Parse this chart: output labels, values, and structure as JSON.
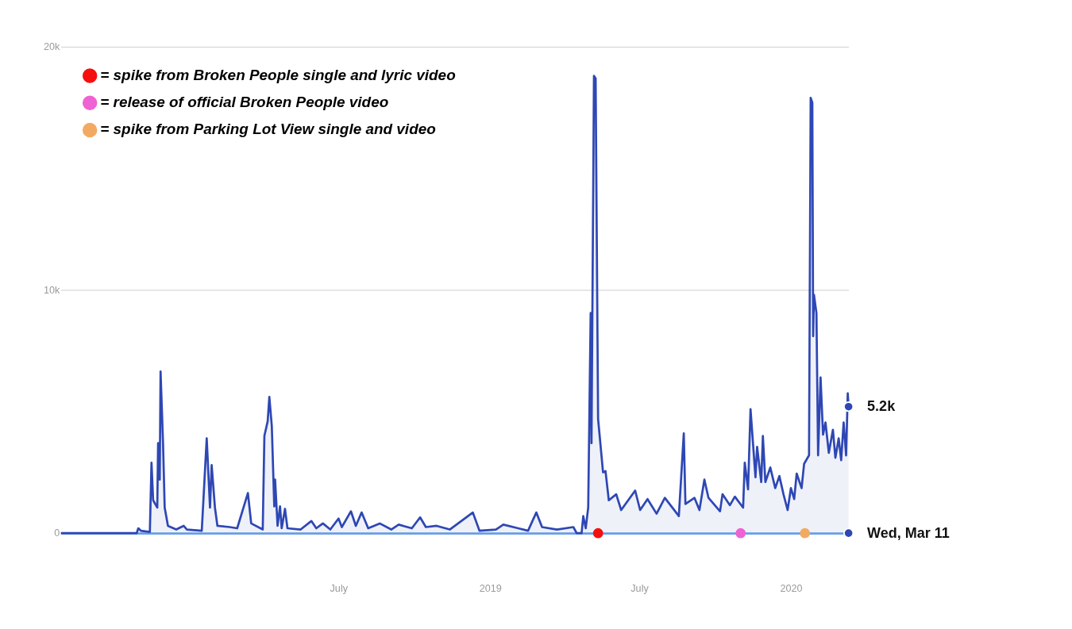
{
  "chart_data": {
    "type": "area",
    "x": [
      "2017-07-29",
      "2017-10-29",
      "2017-10-31",
      "2017-11-03",
      "2017-11-14",
      "2017-11-16",
      "2017-11-18",
      "2017-11-23",
      "2017-11-24",
      "2017-11-26",
      "2017-11-27",
      "2017-11-30",
      "2017-12-02",
      "2017-12-06",
      "2017-12-16",
      "2017-12-25",
      "2017-12-29",
      "2018-01-16",
      "2018-01-22",
      "2018-01-26",
      "2018-01-28",
      "2018-02-01",
      "2018-02-04",
      "2018-02-19",
      "2018-02-28",
      "2018-03-13",
      "2018-03-17",
      "2018-03-31",
      "2018-04-02",
      "2018-04-06",
      "2018-04-08",
      "2018-04-11",
      "2018-04-14",
      "2018-04-15",
      "2018-04-18",
      "2018-04-21",
      "2018-04-23",
      "2018-04-27",
      "2018-04-30",
      "2018-05-16",
      "2018-05-29",
      "2018-06-04",
      "2018-06-12",
      "2018-06-21",
      "2018-07-01",
      "2018-07-05",
      "2018-07-16",
      "2018-07-22",
      "2018-07-29",
      "2018-08-06",
      "2018-08-20",
      "2018-09-03",
      "2018-09-12",
      "2018-09-28",
      "2018-10-08",
      "2018-10-15",
      "2018-10-28",
      "2018-11-13",
      "2018-12-11",
      "2018-12-19",
      "2019-01-08",
      "2019-01-17",
      "2019-02-04",
      "2019-02-16",
      "2019-02-26",
      "2019-03-05",
      "2019-03-23",
      "2019-04-12",
      "2019-04-16",
      "2019-04-22",
      "2019-04-24",
      "2019-04-27",
      "2019-04-30",
      "2019-05-03",
      "2019-05-04",
      "2019-05-07",
      "2019-05-09",
      "2019-05-12",
      "2019-05-18",
      "2019-05-21",
      "2019-05-25",
      "2019-06-03",
      "2019-06-09",
      "2019-06-26",
      "2019-07-02",
      "2019-07-11",
      "2019-07-22",
      "2019-08-01",
      "2019-08-18",
      "2019-08-24",
      "2019-08-26",
      "2019-09-06",
      "2019-09-12",
      "2019-09-18",
      "2019-09-23",
      "2019-10-07",
      "2019-10-10",
      "2019-10-19",
      "2019-10-25",
      "2019-11-04",
      "2019-11-06",
      "2019-11-10",
      "2019-11-13",
      "2019-11-19",
      "2019-11-21",
      "2019-11-26",
      "2019-11-28",
      "2019-12-01",
      "2019-12-07",
      "2019-12-13",
      "2019-12-18",
      "2019-12-23",
      "2019-12-28",
      "2020-01-01",
      "2020-01-05",
      "2020-01-08",
      "2020-01-14",
      "2020-01-17",
      "2020-01-23",
      "2020-01-25",
      "2020-01-27",
      "2020-01-28",
      "2020-01-29",
      "2020-02-01",
      "2020-02-03",
      "2020-02-06",
      "2020-02-09",
      "2020-02-12",
      "2020-02-16",
      "2020-02-21",
      "2020-02-24",
      "2020-02-28",
      "2020-03-02",
      "2020-03-05",
      "2020-03-08",
      "2020-03-10",
      "2020-03-11"
    ],
    "series": [
      {
        "color": "#2e47b4",
        "marker": "none",
        "values": [
          0,
          0,
          200,
          100,
          50,
          2900,
          1350,
          1050,
          3700,
          2200,
          6650,
          3700,
          1050,
          300,
          150,
          300,
          150,
          100,
          3900,
          1050,
          2800,
          1050,
          300,
          250,
          200,
          1650,
          400,
          150,
          4000,
          4600,
          5600,
          4400,
          1100,
          2200,
          300,
          1100,
          200,
          1000,
          200,
          150,
          500,
          200,
          400,
          150,
          600,
          250,
          900,
          300,
          850,
          200,
          400,
          150,
          350,
          200,
          650,
          250,
          300,
          150,
          850,
          100,
          150,
          350,
          200,
          100,
          850,
          250,
          150,
          250,
          0,
          0,
          700,
          200,
          1050,
          9050,
          3700,
          18800,
          18700,
          4700,
          2500,
          2550,
          1350,
          1600,
          950,
          1750,
          950,
          1400,
          800,
          1450,
          700,
          4100,
          1200,
          1450,
          950,
          2200,
          1450,
          900,
          1600,
          1150,
          1500,
          1050,
          2900,
          1800,
          5100,
          2300,
          3550,
          2100,
          4000,
          2100,
          2700,
          1850,
          2350,
          1600,
          950,
          1850,
          1400,
          2450,
          1850,
          2850,
          3200,
          17900,
          17700,
          8100,
          9800,
          9050,
          3200,
          6400,
          4050,
          4550,
          3300,
          4250,
          3100,
          3900,
          3000,
          4550,
          3200,
          5750,
          5200
        ]
      },
      {
        "type": "scatter",
        "name": "= spike from Broken People single and lyric video",
        "color": "#f50f0f",
        "marker": "circle",
        "x": [
          "2019-05-12"
        ],
        "values": [
          0
        ]
      },
      {
        "type": "scatter",
        "name": "= release of official Broken People video",
        "color": "#ee62d4",
        "marker": "circle",
        "x": [
          "2019-11-01"
        ],
        "values": [
          0
        ]
      },
      {
        "type": "scatter",
        "name": "= spike from Parking Lot View single and video",
        "color": "#f2aa62",
        "marker": "circle",
        "x": [
          "2020-01-18"
        ],
        "values": [
          0
        ]
      }
    ],
    "xlim": [
      "2017-07-29",
      "2020-03-11"
    ],
    "xticks": [
      {
        "value": "2018-07-01",
        "label": "July"
      },
      {
        "value": "2019-01-01",
        "label": "2019"
      },
      {
        "value": "2019-07-01",
        "label": "July"
      },
      {
        "value": "2020-01-01",
        "label": "2020"
      }
    ],
    "ylim": [
      0,
      20000
    ],
    "yticks": [
      {
        "value": 0,
        "label": "0"
      },
      {
        "value": 10000,
        "label": "10k"
      },
      {
        "value": 20000,
        "label": "20k"
      }
    ],
    "grid": "y",
    "legend": "top left",
    "annotations": [
      {
        "text": "5.2k",
        "x": "2020-03-11",
        "y": 5200
      },
      {
        "text": "Wed, Mar 11",
        "x": "2020-03-11",
        "y": 0
      }
    ]
  }
}
